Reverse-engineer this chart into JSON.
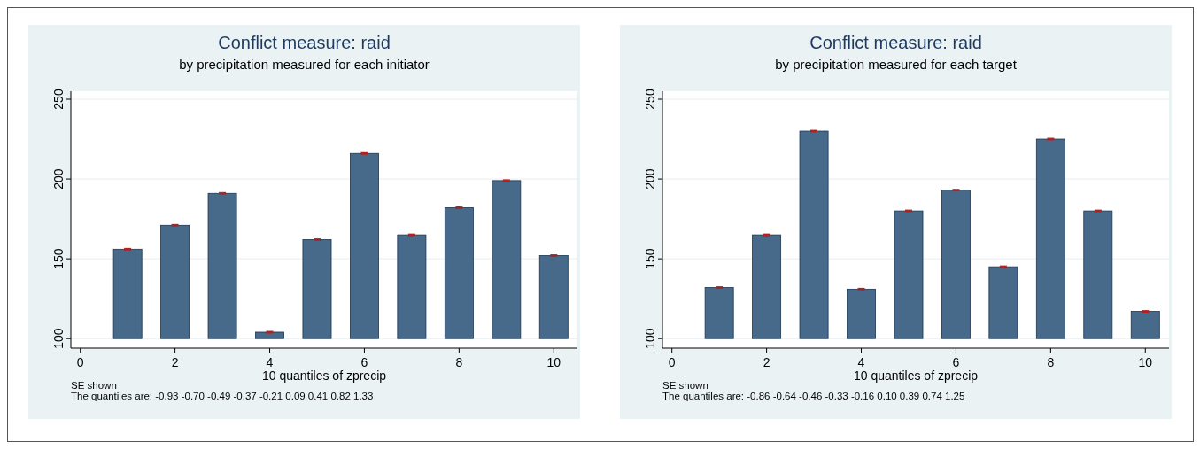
{
  "chart_data": [
    {
      "type": "bar",
      "title": "Conflict measure: raid",
      "subtitle": "by precipitation measured for each initiator",
      "xlabel": "10 quantiles of zprecip",
      "annotations": [
        "SE shown",
        "The quantiles are: -0.93 -0.70 -0.49 -0.37 -0.21 0.09 0.41 0.82 1.33"
      ],
      "x": [
        1,
        2,
        3,
        4,
        5,
        6,
        7,
        8,
        9,
        10
      ],
      "base": [
        100,
        100,
        100,
        100,
        100,
        100,
        100,
        100,
        100,
        100
      ],
      "values": [
        56,
        71,
        91,
        4,
        62,
        116,
        65,
        82,
        99,
        52
      ],
      "errors": [
        0.4,
        0.4,
        0.4,
        0.4,
        0.4,
        0.4,
        0.4,
        0.4,
        0.4,
        0.4
      ],
      "color": "#476a8b",
      "xlim": [
        -0.2,
        10.5
      ],
      "ylim": [
        94,
        255
      ],
      "xticks": [
        0,
        2,
        4,
        6,
        8,
        10
      ],
      "yticks": [
        100,
        150,
        200,
        250
      ],
      "grid": "y"
    },
    {
      "type": "bar",
      "title": "Conflict measure: raid",
      "subtitle": "by precipitation measured for each target",
      "xlabel": "10 quantiles of zprecip",
      "annotations": [
        "SE shown",
        "The quantiles are: -0.86 -0.64 -0.46 -0.33 -0.16 0.10 0.39 0.74 1.25"
      ],
      "x": [
        1,
        2,
        3,
        4,
        5,
        6,
        7,
        8,
        9,
        10
      ],
      "base": [
        100,
        100,
        100,
        100,
        100,
        100,
        100,
        100,
        100,
        100
      ],
      "values": [
        32,
        65,
        130,
        31,
        80,
        93,
        45,
        125,
        80,
        17
      ],
      "errors": [
        0.4,
        0.4,
        0.4,
        0.4,
        0.4,
        0.4,
        0.4,
        0.4,
        0.4,
        0.4
      ],
      "color": "#476a8b",
      "xlim": [
        -0.2,
        10.5
      ],
      "ylim": [
        94,
        255
      ],
      "xticks": [
        0,
        2,
        4,
        6,
        8,
        10
      ],
      "yticks": [
        100,
        150,
        200,
        250
      ],
      "grid": "y"
    }
  ]
}
